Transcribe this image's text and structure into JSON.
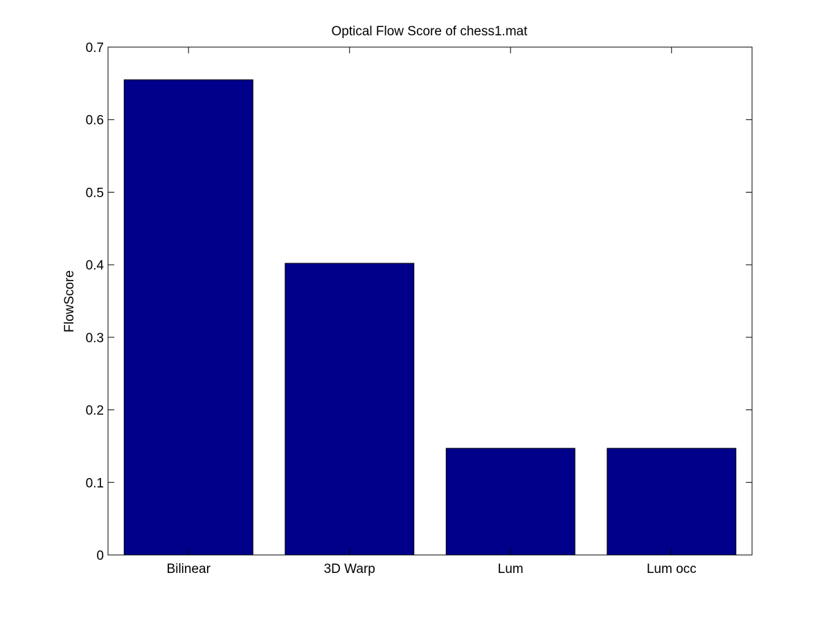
{
  "chart_data": {
    "type": "bar",
    "title": "Optical Flow Score of chess1.mat",
    "xlabel": "",
    "ylabel": "FlowScore",
    "categories": [
      "Bilinear",
      "3D Warp",
      "Lum",
      "Lum occ"
    ],
    "values": [
      0.655,
      0.402,
      0.147,
      0.147
    ],
    "ylim": [
      0,
      0.7
    ],
    "yticks": [
      "0",
      "0.1",
      "0.2",
      "0.3",
      "0.4",
      "0.5",
      "0.6",
      "0.7"
    ],
    "grid": false,
    "legend": "none",
    "bar_color": "#00008b"
  }
}
